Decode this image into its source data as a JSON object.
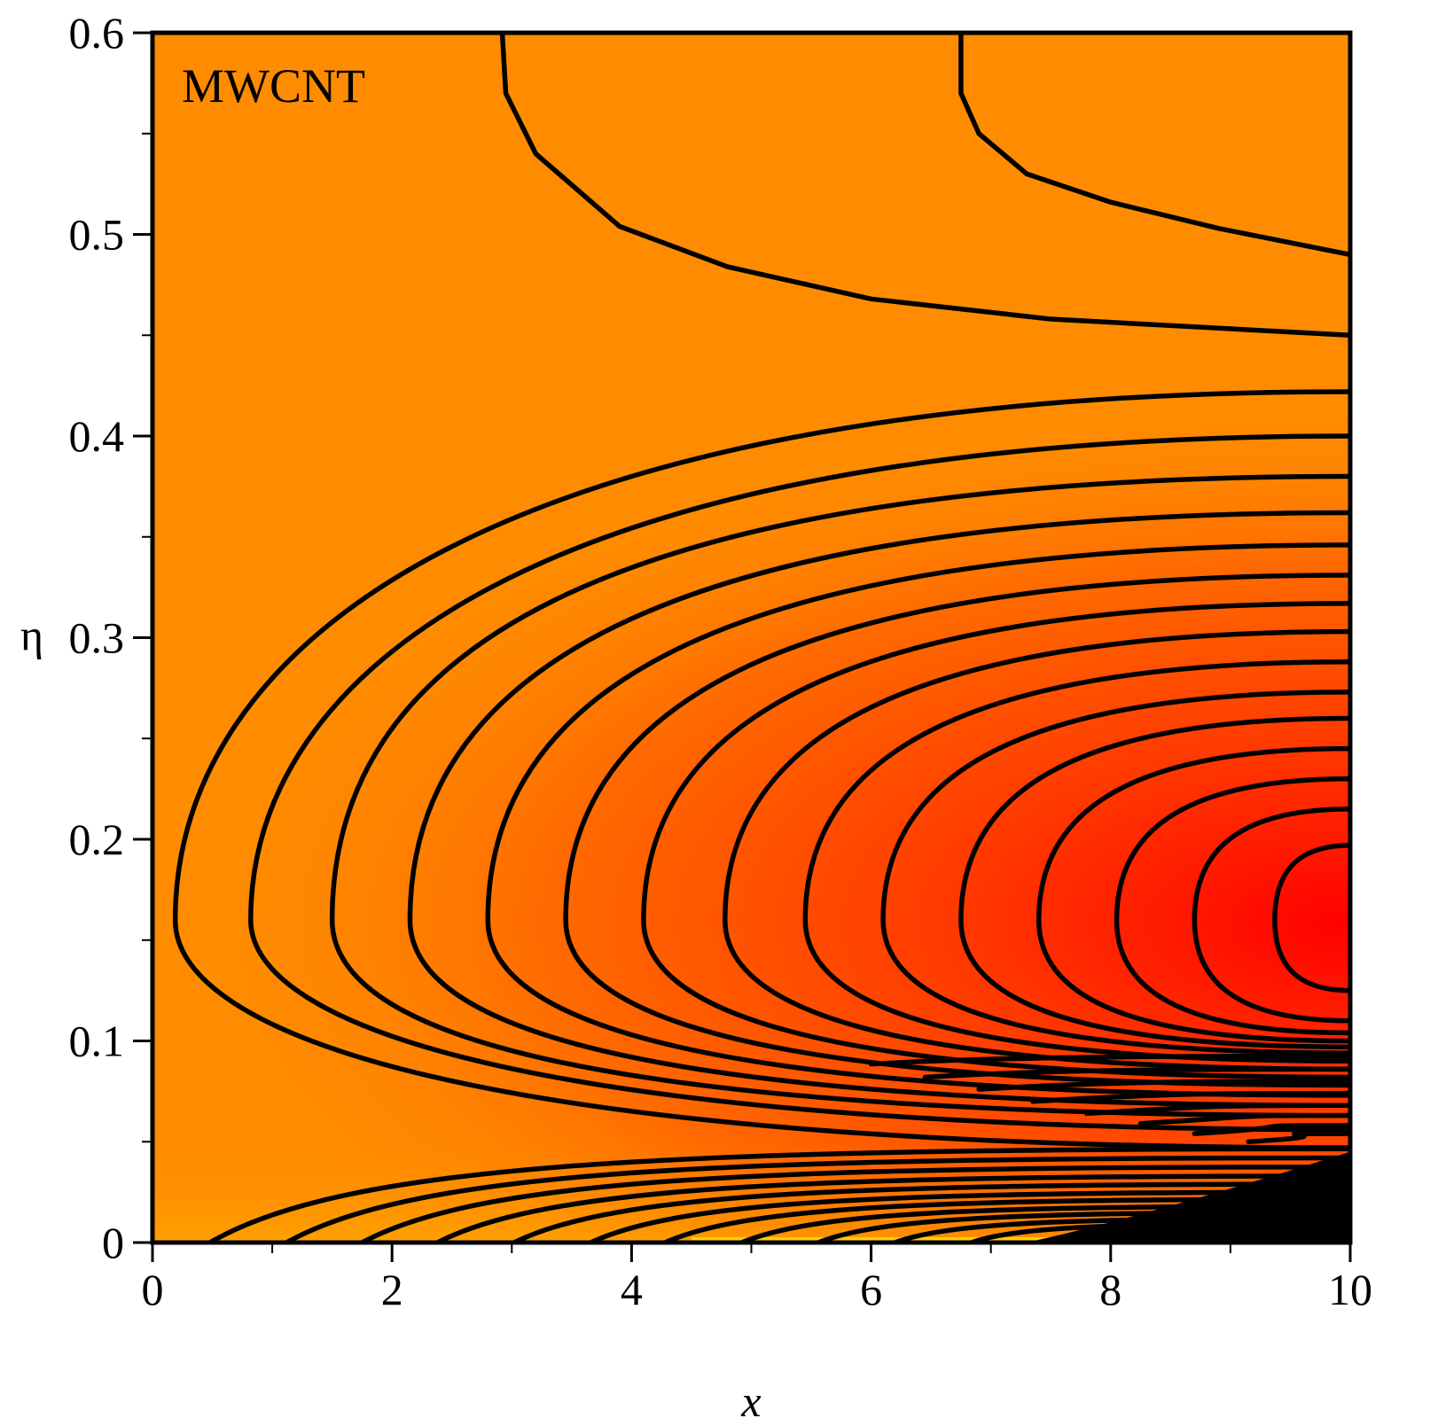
{
  "chart_data": {
    "type": "contour",
    "title": "",
    "annotation": "MWCNT",
    "xlabel": "x",
    "ylabel": "η",
    "xlim": [
      0,
      10
    ],
    "ylim": [
      0,
      0.6
    ],
    "x_ticks": [
      "0",
      "2",
      "4",
      "6",
      "8",
      "10"
    ],
    "y_ticks": [
      "0",
      "0.1",
      "0.2",
      "0.3",
      "0.4",
      "0.5",
      "0.6"
    ],
    "x_tick_values": [
      0,
      2,
      4,
      6,
      8,
      10
    ],
    "y_tick_values": [
      0,
      0.1,
      0.2,
      0.3,
      0.4,
      0.5,
      0.6
    ],
    "x_minor_step": 1,
    "y_minor_step": 0.05,
    "grid": false,
    "colormap": {
      "low": "#ff0000",
      "high": "#ff8c00",
      "near_wall": "#ffd000"
    },
    "contour_peak": {
      "x": 10,
      "eta": 0.16
    },
    "open_contours_top": [
      {
        "name": "top-open-2",
        "points": [
          [
            6.75,
            0.6
          ],
          [
            6.75,
            0.57
          ],
          [
            6.9,
            0.55
          ],
          [
            7.3,
            0.53
          ],
          [
            8.0,
            0.516
          ],
          [
            8.9,
            0.503
          ],
          [
            10,
            0.49
          ]
        ]
      },
      {
        "name": "top-open-1",
        "points": [
          [
            2.92,
            0.6
          ],
          [
            2.95,
            0.57
          ],
          [
            3.2,
            0.54
          ],
          [
            3.9,
            0.504
          ],
          [
            4.8,
            0.484
          ],
          [
            6.0,
            0.468
          ],
          [
            7.5,
            0.458
          ],
          [
            10,
            0.45
          ]
        ]
      }
    ],
    "contours": [
      {
        "x_tip": 0.19,
        "eta_top": 0.422,
        "eta_bottom": 0.047
      },
      {
        "x_tip": 0.82,
        "eta_top": 0.4,
        "eta_bottom": 0.056
      },
      {
        "x_tip": 1.5,
        "eta_top": 0.38,
        "eta_bottom": 0.063
      },
      {
        "x_tip": 2.15,
        "eta_top": 0.362,
        "eta_bottom": 0.068
      },
      {
        "x_tip": 2.8,
        "eta_top": 0.346,
        "eta_bottom": 0.073
      },
      {
        "x_tip": 3.45,
        "eta_top": 0.331,
        "eta_bottom": 0.078
      },
      {
        "x_tip": 4.1,
        "eta_top": 0.317,
        "eta_bottom": 0.082
      },
      {
        "x_tip": 4.78,
        "eta_top": 0.303,
        "eta_bottom": 0.086
      },
      {
        "x_tip": 5.45,
        "eta_top": 0.288,
        "eta_bottom": 0.09
      },
      {
        "x_tip": 6.1,
        "eta_top": 0.273,
        "eta_bottom": 0.094
      },
      {
        "x_tip": 6.75,
        "eta_top": 0.26,
        "eta_bottom": 0.097
      },
      {
        "x_tip": 7.4,
        "eta_top": 0.245,
        "eta_bottom": 0.1
      },
      {
        "x_tip": 8.05,
        "eta_top": 0.23,
        "eta_bottom": 0.104
      },
      {
        "x_tip": 8.7,
        "eta_top": 0.215,
        "eta_bottom": 0.11
      },
      {
        "x_tip": 9.37,
        "eta_top": 0.197,
        "eta_bottom": 0.125
      }
    ],
    "wall_contours": [
      {
        "x_start": 0.48,
        "eta_end": 0.0465
      },
      {
        "x_start": 1.12,
        "eta_end": 0.042
      },
      {
        "x_start": 1.75,
        "eta_end": 0.0375
      },
      {
        "x_start": 2.38,
        "eta_end": 0.033
      },
      {
        "x_start": 3.02,
        "eta_end": 0.029
      },
      {
        "x_start": 3.66,
        "eta_end": 0.025
      },
      {
        "x_start": 4.28,
        "eta_end": 0.0215
      },
      {
        "x_start": 4.92,
        "eta_end": 0.018
      },
      {
        "x_start": 5.56,
        "eta_end": 0.015
      },
      {
        "x_start": 6.2,
        "eta_end": 0.012
      },
      {
        "x_start": 6.84,
        "eta_end": 0.0095
      },
      {
        "x_start": 7.46,
        "eta_end": 0.0072
      },
      {
        "x_start": 8.1,
        "eta_end": 0.0052
      },
      {
        "x_start": 8.74,
        "eta_end": 0.0035
      },
      {
        "x_start": 9.38,
        "eta_end": 0.002
      }
    ],
    "extra_right_edge_levels": [
      0.0925,
      0.086,
      0.08,
      0.074,
      0.068,
      0.063,
      0.058,
      0.054
    ]
  }
}
